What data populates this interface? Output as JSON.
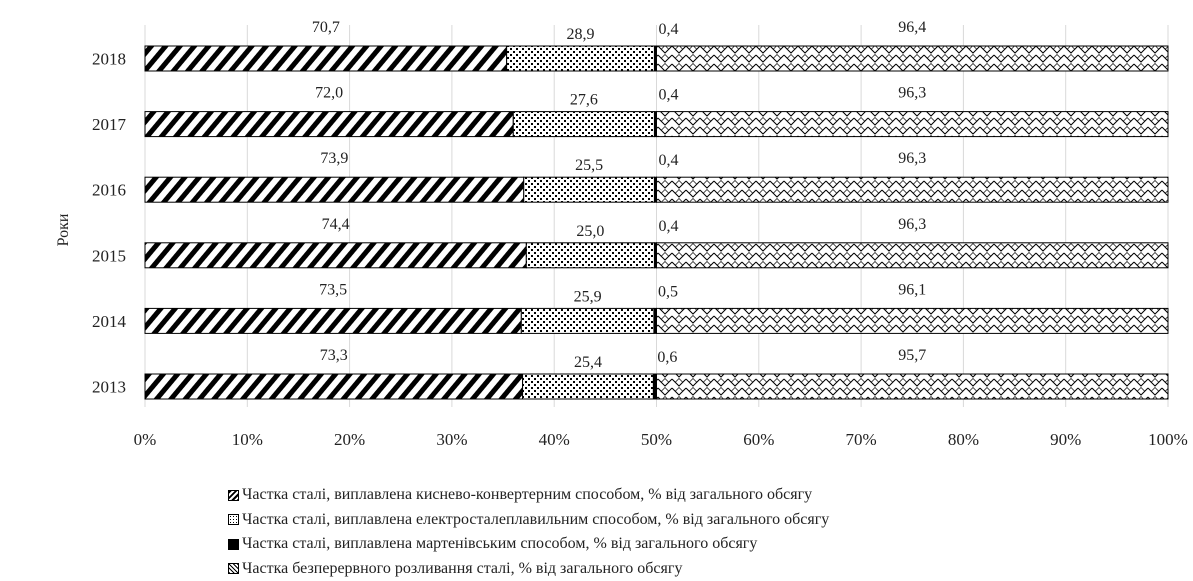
{
  "chart_data": {
    "type": "bar",
    "orientation": "horizontal",
    "categories": [
      "2018",
      "2017",
      "2016",
      "2015",
      "2014",
      "2013"
    ],
    "ylabel": "Роки",
    "xlim": [
      0,
      100
    ],
    "x_ticks": [
      "0%",
      "10%",
      "20%",
      "30%",
      "40%",
      "50%",
      "60%",
      "70%",
      "80%",
      "90%",
      "100%"
    ],
    "grid": true,
    "legend_position": "bottom",
    "series": [
      {
        "name": "Частка сталі, виплавлена киснево-конвертерним способом, % від загального обсягу",
        "values": [
          70.7,
          72.0,
          73.9,
          74.4,
          73.5,
          73.3
        ],
        "labels": [
          "70,7",
          "72,0",
          "73,9",
          "74,4",
          "73,5",
          "73,3"
        ],
        "pattern": "diagonal-stripes"
      },
      {
        "name": "Частка сталі, виплавлена електросталеплавильним способом, % від загального обсягу",
        "values": [
          28.9,
          27.6,
          25.5,
          25.0,
          25.9,
          25.4
        ],
        "labels": [
          "28,9",
          "27,6",
          "25,5",
          "25,0",
          "25,9",
          "25,4"
        ],
        "pattern": "dots"
      },
      {
        "name": "Частка сталі, виплавлена мартенівським способом, % від загального обсягу",
        "values": [
          0.4,
          0.4,
          0.4,
          0.4,
          0.5,
          0.6
        ],
        "labels": [
          "0,4",
          "0,4",
          "0,4",
          "0,4",
          "0,5",
          "0,6"
        ],
        "pattern": "solid"
      },
      {
        "name": "Частка безперервного розливання сталі, % від загального обсягу",
        "values": [
          96.4,
          96.3,
          96.3,
          96.3,
          96.1,
          95.7
        ],
        "labels": [
          "96,4",
          "96,3",
          "96,3",
          "96,3",
          "96,1",
          "95,7"
        ],
        "pattern": "zigzag"
      }
    ]
  }
}
